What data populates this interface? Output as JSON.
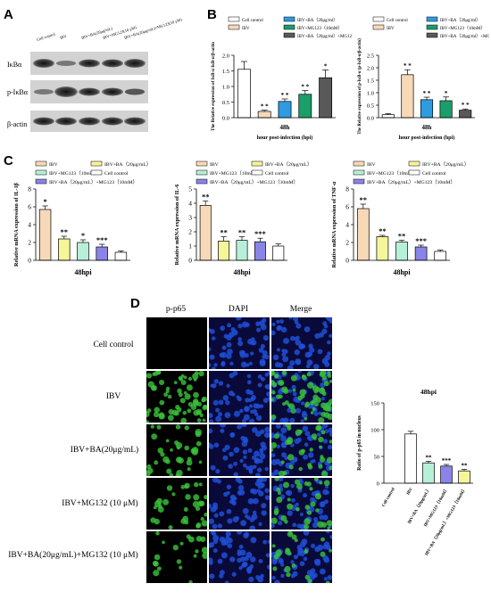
{
  "panels": {
    "A": "A",
    "B": "B",
    "C": "C",
    "D": "D"
  },
  "panel_a": {
    "lanes": [
      "Cell control",
      "IBV",
      "IBV+BA(20μg/mL)",
      "IBV+MG123(10 μM)",
      "IBV+BA(20μg/mL)+MG123(10 μM)"
    ],
    "rows": [
      "IκBα",
      "p-IκBα",
      "β-actin"
    ]
  },
  "colors": {
    "cell_control": "#ffffff",
    "ibv": "#f7d9b8",
    "ibv_ba": "#2f9be0",
    "ibv_mg": "#1a9e6a",
    "ibv_ba_mg": "#595959",
    "c_ibv": "#f7d9b8",
    "c_ba": "#f5f59a",
    "c_mg": "#b6f0d8",
    "c_bamg": "#8a84e8",
    "d_ibv": "#ffffff",
    "d_ba": "#b6f0d8",
    "d_mg": "#8a84e8",
    "d_bamg": "#f5f59a",
    "green": "#39c43a",
    "blue": "#1f4fd6"
  },
  "chart_data": [
    {
      "id": "B1",
      "type": "bar",
      "legend": [
        "Cell control",
        "IBV+BA（20μg/ml）",
        "IBV",
        "IBV+MG123（10mM）",
        "IBV+BA（20μg/ml）+MG123（10mM）"
      ],
      "categories": [
        "Cell control",
        "IBV",
        "IBV+BA（20μg/ml）",
        "IBV+MG123（10mM）",
        "IBV+BA（20μg/ml）+MG123（10mM）"
      ],
      "values": [
        1.55,
        0.2,
        0.52,
        0.75,
        1.28
      ],
      "errors": [
        0.25,
        0.04,
        0.08,
        0.12,
        0.25
      ],
      "sig": [
        "",
        "* *",
        "* *",
        "* *",
        "*"
      ],
      "xlabel": "hour post-infection (hpi)",
      "group": "48h",
      "ylabel": "The Relative expression of IκB-α IκB-α/β-actin",
      "ylim": [
        0,
        2.0
      ],
      "yticks": [
        "0.0",
        "0.5",
        "1.0",
        "1.5",
        "2.0"
      ]
    },
    {
      "id": "B2",
      "type": "bar",
      "legend": [
        "Cell control",
        "IBV+BA（20μg/ml）",
        "IBV",
        "IBV+MG123（10mM）",
        "IBV+BA（20μg/ml）+MG123（10mM）"
      ],
      "categories": [
        "Cell control",
        "IBV",
        "IBV+BA（20μg/ml）",
        "IBV+MG123（10mM）",
        "IBV+BA（20μg/ml）+MG123（10mM）"
      ],
      "values": [
        0.12,
        1.72,
        0.72,
        0.68,
        0.3
      ],
      "errors": [
        0.04,
        0.2,
        0.1,
        0.15,
        0.05
      ],
      "sig": [
        "",
        "* *",
        "* *",
        "*",
        "* *"
      ],
      "xlabel": "hour post-infection (hpi)",
      "group": "48h",
      "ylabel": "The Relative expression of p-IκB-α (p-IκB-α/β-actin)",
      "ylim": [
        0,
        2.5
      ],
      "yticks": [
        "0.0",
        "0.5",
        "1.0",
        "1.5",
        "2.0",
        "2.5"
      ]
    },
    {
      "id": "C1",
      "type": "bar",
      "legend": [
        "IBV",
        "IBV+BA（20μg/mL）",
        "IBV+MG123（10mM）",
        "Cell control",
        "IBV+BA（20μg/mL）+MG123（10mM）"
      ],
      "categories": [
        "IBV",
        "IBV+BA（20μg/mL）",
        "IBV+MG123（10mM）",
        "IBV+BA（20μg/mL）+MG123（10mM）",
        "Cell control"
      ],
      "values": [
        5.7,
        2.4,
        2.0,
        1.5,
        0.9
      ],
      "errors": [
        0.4,
        0.3,
        0.3,
        0.3,
        0.15
      ],
      "sig": [
        "*",
        "**",
        "*",
        "***",
        ""
      ],
      "xlabel": "48hpi",
      "ylabel": "Relative mRNA expression of IL-1β",
      "ylim": [
        0,
        8
      ],
      "yticks": [
        "0",
        "2",
        "4",
        "6",
        "8"
      ]
    },
    {
      "id": "C2",
      "type": "bar",
      "legend": [
        "IBV",
        "IBV+BA（20μg/mL）",
        "IBV+MG123（10mM）",
        "Cell control",
        "IBV+BA（20μg/mL）+MG123（10mM）"
      ],
      "categories": [
        "IBV",
        "IBV+BA（20μg/mL）",
        "IBV+MG123（10mM）",
        "IBV+BA（20μg/mL）+MG123（10mM）",
        "Cell control"
      ],
      "values": [
        3.85,
        1.35,
        1.4,
        1.3,
        1.0
      ],
      "errors": [
        0.3,
        0.3,
        0.25,
        0.25,
        0.15
      ],
      "sig": [
        "**",
        "**",
        "**",
        "***",
        ""
      ],
      "xlabel": "48hpi",
      "ylabel": "Relative mRNA expression of IL-6",
      "ylim": [
        0,
        5
      ],
      "yticks": [
        "0",
        "1",
        "2",
        "3",
        "4",
        "5"
      ]
    },
    {
      "id": "C3",
      "type": "bar",
      "legend": [
        "IBV",
        "IBV+BA（20μg/mL）",
        "IBV+MG123（10mM）",
        "Cell control",
        "IBV+BA（20μg/mL）+MG123（10mM）"
      ],
      "categories": [
        "IBV",
        "IBV+BA（20μg/mL）",
        "IBV+MG123（10mM）",
        "IBV+BA（20μg/mL）+MG123（10mM）",
        "Cell control"
      ],
      "values": [
        5.8,
        2.65,
        2.05,
        1.5,
        1.0
      ],
      "errors": [
        0.5,
        0.15,
        0.2,
        0.2,
        0.15
      ],
      "sig": [
        "**",
        "**",
        "**",
        "***",
        ""
      ],
      "xlabel": "48hpi",
      "ylabel": "Relative mRNA expression of TNF-α",
      "ylim": [
        0,
        8
      ],
      "yticks": [
        "0",
        "2",
        "4",
        "6",
        "8"
      ]
    },
    {
      "id": "D1",
      "type": "bar",
      "title": "48hpi",
      "categories": [
        "Cell control",
        "IBV",
        "IBV+BA（20μg/mL）",
        "IBV+MG123（10mM）",
        "IBV+BA（20μg/mL）+MG123（10mM）"
      ],
      "values": [
        0,
        92,
        38,
        32,
        23
      ],
      "errors": [
        0,
        5,
        3,
        3,
        3
      ],
      "sig": [
        "",
        "",
        "**",
        "***",
        "**"
      ],
      "ylabel": "Ratio of p-p65 in nucleus",
      "ylim": [
        0,
        150
      ],
      "yticks": [
        "0",
        "50",
        "100",
        "150"
      ]
    }
  ],
  "panel_d": {
    "columns": [
      "p-p65",
      "DAPI",
      "Merge"
    ],
    "rows": [
      "Cell control",
      "IBV",
      "IBV+BA(20μg/mL)",
      "IBV+MG132 (10 μM)",
      "IBV+BA(20μg/mL)+MG132 (10 μM)"
    ],
    "green_density": [
      0,
      0.9,
      0.5,
      0.45,
      0.3
    ]
  }
}
